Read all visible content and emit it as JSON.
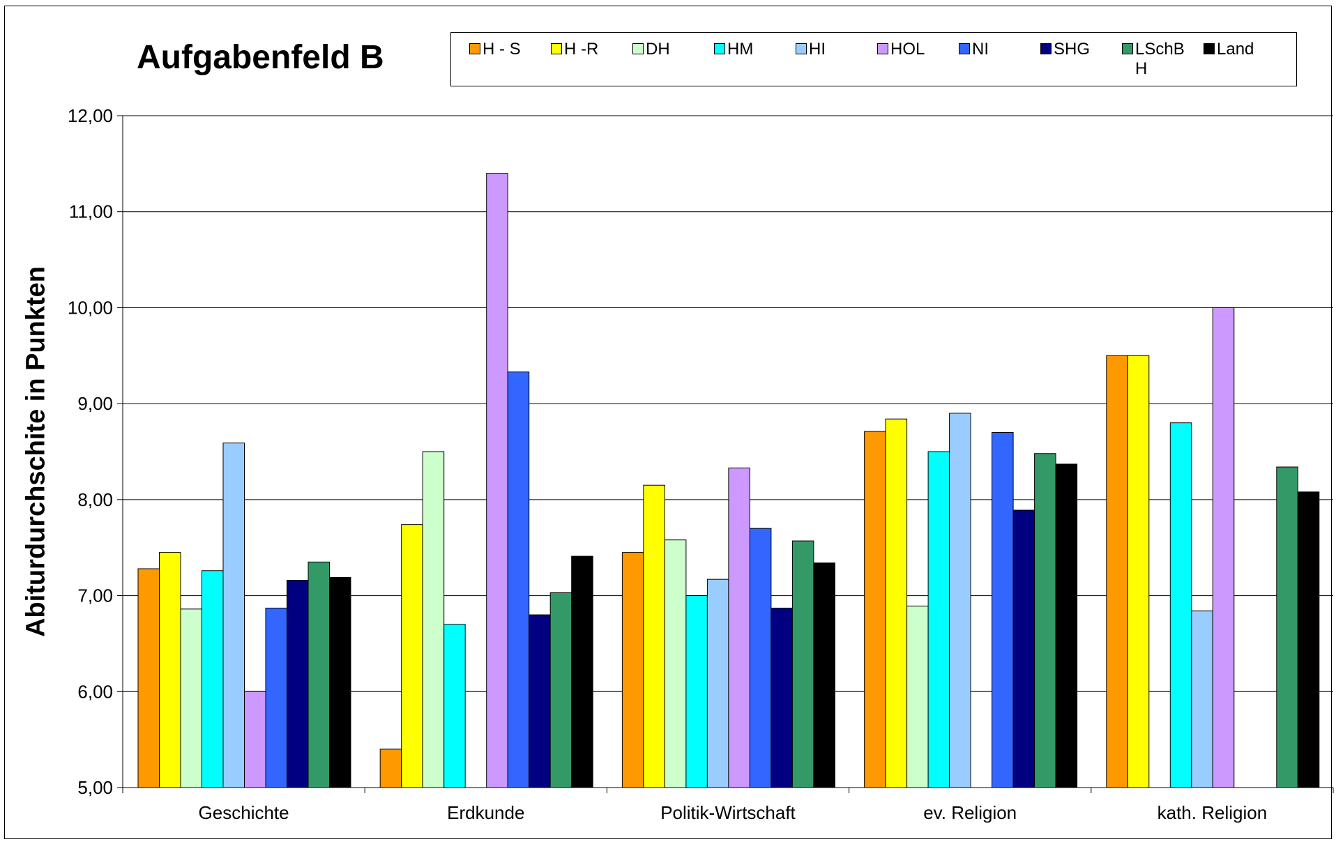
{
  "chart_data": {
    "type": "bar",
    "title": "Aufgabenfeld B",
    "xlabel": "",
    "ylabel": "Abiturdurchschite in Punkten",
    "ylim": [
      5,
      12
    ],
    "yticks": [
      "5,00",
      "6,00",
      "7,00",
      "8,00",
      "9,00",
      "10,00",
      "11,00",
      "12,00"
    ],
    "grid": true,
    "legend_position": "top",
    "categories": [
      "Geschichte",
      "Erdkunde",
      "Politik-Wirtschaft",
      "ev. Religion",
      "kath. Religion"
    ],
    "series": [
      {
        "name": "H - S",
        "color": "#FF9900",
        "values": [
          7.28,
          5.4,
          7.45,
          8.71,
          9.5
        ]
      },
      {
        "name": "H -R",
        "color": "#FFFF00",
        "values": [
          7.45,
          7.74,
          8.15,
          8.84,
          9.5
        ]
      },
      {
        "name": "DH",
        "color": "#CCFFCC",
        "values": [
          6.86,
          8.5,
          7.58,
          6.89,
          null
        ]
      },
      {
        "name": "HM",
        "color": "#00FFFF",
        "values": [
          7.26,
          6.7,
          7.0,
          8.5,
          8.8
        ]
      },
      {
        "name": "HI",
        "color": "#99CCFF",
        "values": [
          8.59,
          null,
          7.17,
          8.9,
          6.84
        ]
      },
      {
        "name": "HOL",
        "color": "#CC99FF",
        "values": [
          6.0,
          11.4,
          8.33,
          null,
          10.0
        ]
      },
      {
        "name": "NI",
        "color": "#3366FF",
        "values": [
          6.87,
          9.33,
          7.7,
          8.7,
          null
        ]
      },
      {
        "name": "SHG",
        "color": "#000080",
        "values": [
          7.16,
          6.8,
          6.87,
          7.89,
          null
        ]
      },
      {
        "name": "LSchB H",
        "color": "#339966",
        "values": [
          7.35,
          7.03,
          7.57,
          8.48,
          8.34
        ]
      },
      {
        "name": "Land",
        "color": "#000000",
        "values": [
          7.19,
          7.41,
          7.34,
          8.37,
          8.08
        ]
      }
    ]
  }
}
